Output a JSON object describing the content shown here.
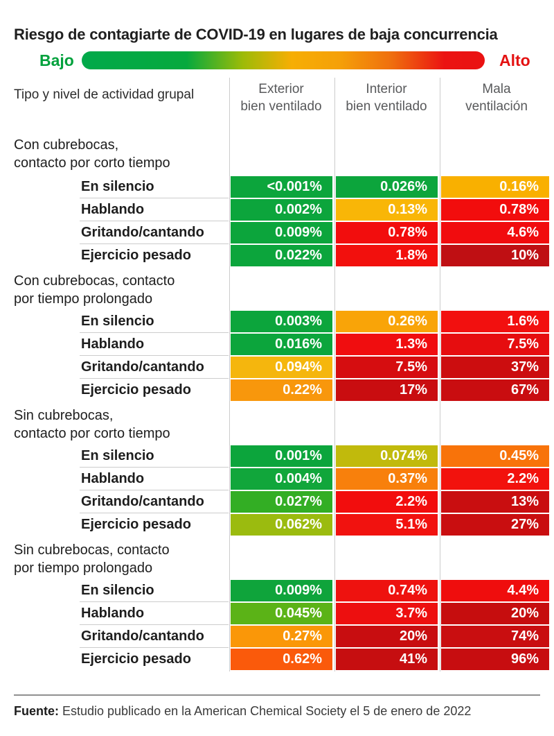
{
  "title": "Riesgo de contagiarte de COVID-19 en lugares de baja concurrencia",
  "legend": {
    "low_label": "Bajo",
    "high_label": "Alto",
    "low_color": "#00A13C",
    "high_color": "#E41212"
  },
  "row_header": "Tipo y nivel de actividad grupal",
  "footer": {
    "label": "Fuente:",
    "text": "Estudio publicado en la American Chemical Society el 5 de enero de 2022"
  },
  "chart_data": {
    "type": "heatmap",
    "title": "Riesgo de contagiarte de COVID-19 en lugares de baja concurrencia",
    "scale": {
      "low_label": "Bajo",
      "high_label": "Alto",
      "gradient": [
        "#02A94A",
        "#9DBB07",
        "#F6AE04",
        "#EF6E0E",
        "#EA1212"
      ]
    },
    "columns": [
      "Exterior\nbien ventilado",
      "Interior\nbien ventilado",
      "Mala\nventilación"
    ],
    "groups": [
      {
        "label": "Con cubrebocas,\ncontacto por corto tiempo",
        "rows": [
          {
            "label": "En silencio",
            "values": [
              "<0.001%",
              "0.026%",
              "0.16%"
            ],
            "colors": [
              "#0CA53C",
              "#0CA53C",
              "#F9B000"
            ]
          },
          {
            "label": "Hablando",
            "values": [
              "0.002%",
              "0.13%",
              "0.78%"
            ],
            "colors": [
              "#0CA53C",
              "#F9B607",
              "#F20D0D"
            ]
          },
          {
            "label": "Gritando/cantando",
            "values": [
              "0.009%",
              "0.78%",
              "4.6%"
            ],
            "colors": [
              "#0CA53C",
              "#F20D0D",
              "#F10C0E"
            ]
          },
          {
            "label": "Ejercicio pesado",
            "values": [
              "0.022%",
              "1.8%",
              "10%"
            ],
            "colors": [
              "#0CA53C",
              "#F2100D",
              "#BF0F13"
            ]
          }
        ]
      },
      {
        "label": "Con cubrebocas, contacto\npor tiempo prolongado",
        "rows": [
          {
            "label": "En silencio",
            "values": [
              "0.003%",
              "0.26%",
              "1.6%"
            ],
            "colors": [
              "#0CA53C",
              "#F9A408",
              "#F2100F"
            ]
          },
          {
            "label": "Hablando",
            "values": [
              "0.016%",
              "1.3%",
              "7.5%"
            ],
            "colors": [
              "#0CA53C",
              "#F00D0F",
              "#E60D0F"
            ]
          },
          {
            "label": "Gritando/cantando",
            "values": [
              "0.094%",
              "7.5%",
              "37%"
            ],
            "colors": [
              "#F5B60D",
              "#D60D10",
              "#CC0D0F"
            ]
          },
          {
            "label": "Ejercicio pesado",
            "values": [
              "0.22%",
              "17%",
              "67%"
            ],
            "colors": [
              "#F8970C",
              "#C90D10",
              "#C90D10"
            ]
          }
        ]
      },
      {
        "label": "Sin cubrebocas,\ncontacto por corto tiempo",
        "rows": [
          {
            "label": "En silencio",
            "values": [
              "0.001%",
              "0.074%",
              "0.45%"
            ],
            "colors": [
              "#0CA53C",
              "#C1BA0C",
              "#F8730A"
            ]
          },
          {
            "label": "Hablando",
            "values": [
              "0.004%",
              "0.37%",
              "2.2%"
            ],
            "colors": [
              "#11A63B",
              "#F8800C",
              "#F2120D"
            ]
          },
          {
            "label": "Gritando/cantando",
            "values": [
              "0.027%",
              "2.2%",
              "13%"
            ],
            "colors": [
              "#33AE24",
              "#F20D0D",
              "#C90E10"
            ]
          },
          {
            "label": "Ejercicio pesado",
            "values": [
              "0.062%",
              "5.1%",
              "27%"
            ],
            "colors": [
              "#9BBB0F",
              "#F1120F",
              "#C90E10"
            ]
          }
        ]
      },
      {
        "label": "Sin cubrebocas, contacto\npor tiempo prolongado",
        "rows": [
          {
            "label": "En silencio",
            "values": [
              "0.009%",
              "0.74%",
              "4.4%"
            ],
            "colors": [
              "#0FA43B",
              "#EE120F",
              "#EF0D0D"
            ]
          },
          {
            "label": "Hablando",
            "values": [
              "0.045%",
              "3.7%",
              "20%"
            ],
            "colors": [
              "#5BB317",
              "#ED0F0F",
              "#C60D0E"
            ]
          },
          {
            "label": "Gritando/cantando",
            "values": [
              "0.27%",
              "20%",
              "74%"
            ],
            "colors": [
              "#FA9708",
              "#C80D10",
              "#C90E10"
            ]
          },
          {
            "label": "Ejercicio pesado",
            "values": [
              "0.62%",
              "41%",
              "96%"
            ],
            "colors": [
              "#FA5A0B",
              "#C60E10",
              "#C70D10"
            ]
          }
        ]
      }
    ]
  }
}
